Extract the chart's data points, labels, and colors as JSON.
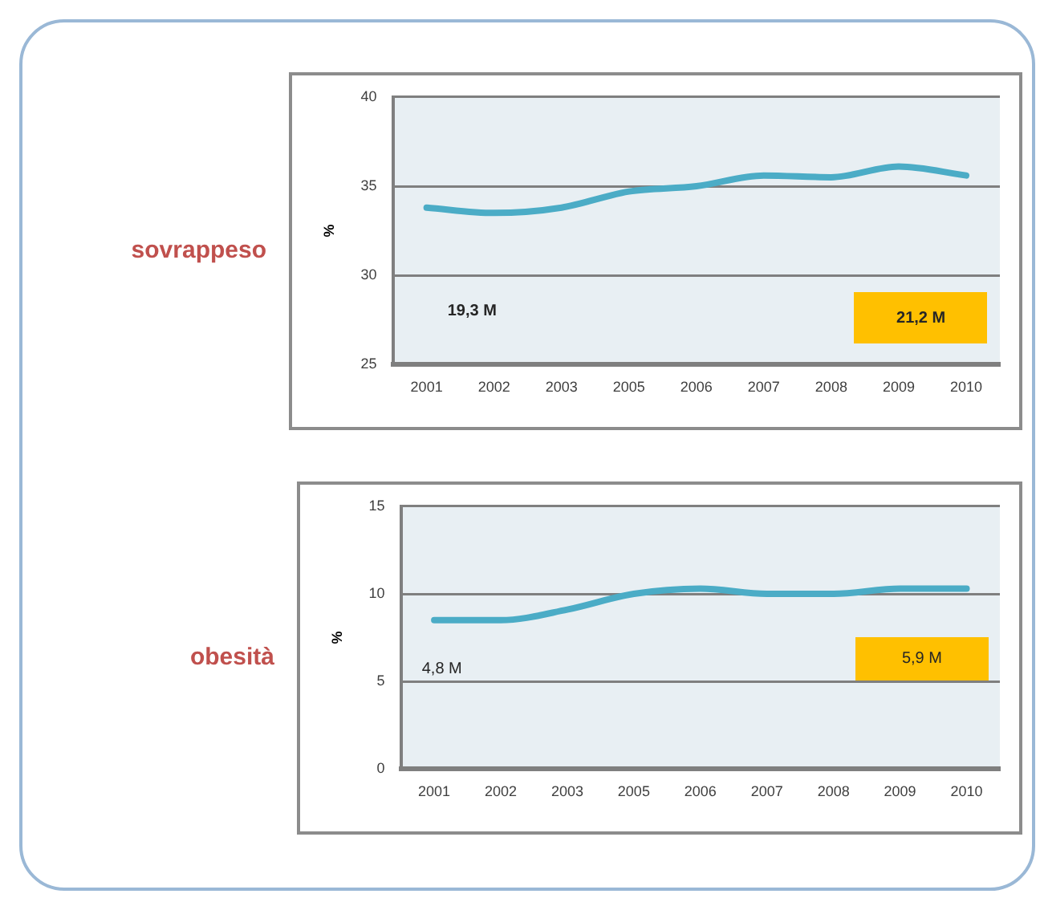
{
  "chart_data": [
    {
      "type": "line",
      "title": "sovrappeso",
      "ylabel": "%",
      "categories": [
        "2001",
        "2002",
        "2003",
        "2005",
        "2006",
        "2007",
        "2008",
        "2009",
        "2010"
      ],
      "series": [
        {
          "color": "#4bacc6",
          "values": [
            33.8,
            33.5,
            33.8,
            34.7,
            35.0,
            35.6,
            35.5,
            36.1,
            35.6
          ]
        }
      ],
      "ylim": [
        25,
        40
      ],
      "yticks": [
        25,
        30,
        35,
        40
      ],
      "grid": "y",
      "annotations": [
        "19,3 M",
        "21,2 M"
      ]
    },
    {
      "type": "line",
      "title": "obesità",
      "ylabel": "%",
      "categories": [
        "2001",
        "2002",
        "2003",
        "2005",
        "2006",
        "2007",
        "2008",
        "2009",
        "2010"
      ],
      "series": [
        {
          "color": "#4bacc6",
          "values": [
            8.5,
            8.5,
            9.1,
            10.0,
            10.3,
            10.0,
            10.0,
            10.3,
            10.3
          ]
        }
      ],
      "ylim": [
        0,
        15
      ],
      "yticks": [
        0,
        5,
        10,
        15
      ],
      "grid": "y",
      "annotations": [
        "4,8 M",
        "5,9 M"
      ]
    }
  ]
}
